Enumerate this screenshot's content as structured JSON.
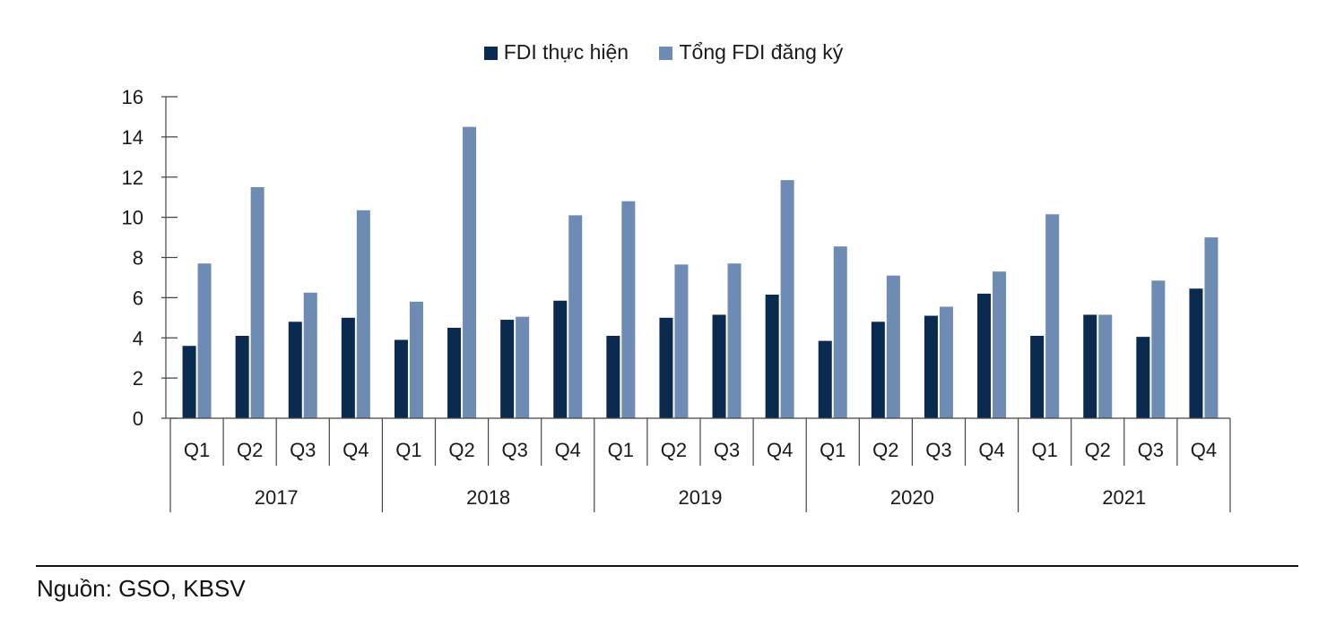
{
  "chart_data": {
    "type": "bar",
    "title": "",
    "xlabel": "",
    "ylabel": "",
    "ylim": [
      0,
      16
    ],
    "yticks": [
      "0",
      "2",
      "4",
      "6",
      "8",
      "10",
      "12",
      "14",
      "16"
    ],
    "years": [
      "2017",
      "2018",
      "2019",
      "2020",
      "2021"
    ],
    "quarters": [
      "Q1",
      "Q2",
      "Q3",
      "Q4"
    ],
    "categories": [
      "Q1 2017",
      "Q2 2017",
      "Q3 2017",
      "Q4 2017",
      "Q1 2018",
      "Q2 2018",
      "Q3 2018",
      "Q4 2018",
      "Q1 2019",
      "Q2 2019",
      "Q3 2019",
      "Q4 2019",
      "Q1 2020",
      "Q2 2020",
      "Q3 2020",
      "Q4 2020",
      "Q1 2021",
      "Q2 2021",
      "Q3 2021",
      "Q4 2021"
    ],
    "series": [
      {
        "name": "FDI thực hiện",
        "color": "#0b2a4f",
        "values": [
          3.6,
          4.1,
          4.8,
          5.0,
          3.9,
          4.5,
          4.9,
          5.85,
          4.1,
          5.0,
          5.15,
          6.15,
          3.85,
          4.8,
          5.1,
          6.2,
          4.1,
          5.15,
          4.05,
          6.45
        ]
      },
      {
        "name": "Tổng FDI đăng ký",
        "color": "#6e8cb3",
        "values": [
          7.7,
          11.5,
          6.25,
          10.35,
          5.8,
          14.5,
          5.05,
          10.1,
          10.8,
          7.65,
          7.7,
          11.85,
          8.55,
          7.1,
          5.55,
          7.3,
          10.15,
          5.15,
          6.85,
          9.0
        ]
      }
    ],
    "legend_position": "top-center",
    "grid": false
  },
  "source_text": "Nguồn: GSO, KBSV"
}
